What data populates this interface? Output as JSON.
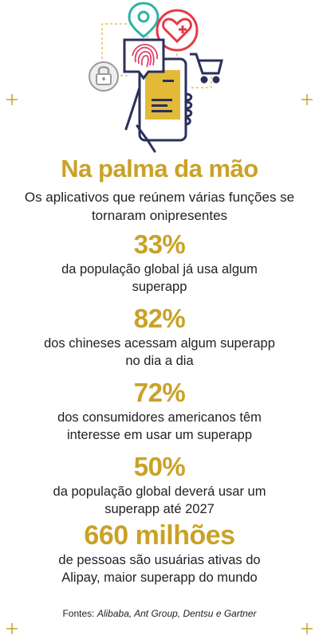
{
  "header": {
    "title": "Na palma da mão",
    "subtitle": "Os aplicativos que reúnem várias funções se tornaram onipresentes"
  },
  "stats": [
    {
      "value": "33%",
      "description": "da população global já usa algum superapp"
    },
    {
      "value": "82%",
      "description": "dos chineses acessam algum superapp no dia a dia"
    },
    {
      "value": "72%",
      "description": "dos consumidores americanos têm interesse em usar um superapp"
    },
    {
      "value": "50%",
      "description": "da população global deverá usar um superapp até 2027"
    },
    {
      "value": "660 milhões",
      "description": "de pessoas são usuárias ativas do Alipay, maior superapp do mundo"
    }
  ],
  "sources": {
    "label": "Fontes:",
    "names": "Alibaba, Ant Group, Dentsu e Gartner"
  },
  "colors": {
    "accent": "#c9a227",
    "navy": "#2b2f5c",
    "pink": "#e0406e",
    "teal": "#2bb3a6",
    "red": "#e63946",
    "gray": "#9a9a9a"
  },
  "icons": [
    "location-pin-icon",
    "heart-plus-icon",
    "fingerprint-icon",
    "padlock-icon",
    "shopping-cart-icon",
    "smartphone-icon",
    "hand-icon"
  ]
}
